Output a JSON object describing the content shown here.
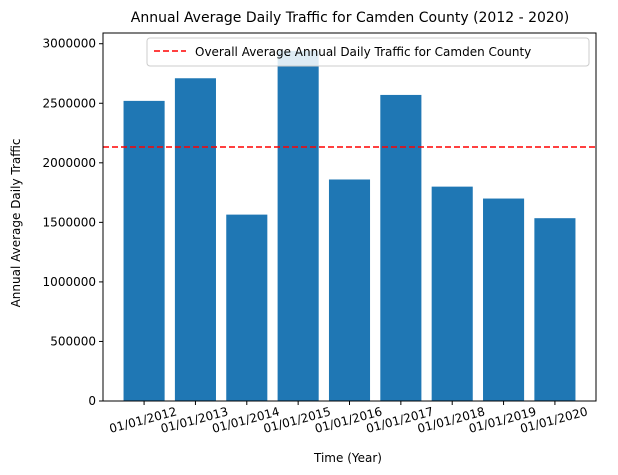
{
  "chart_data": {
    "type": "bar",
    "title": "Annual Average Daily Traffic for Camden County (2012 - 2020)",
    "xlabel": "Time (Year)",
    "ylabel": "Annual Average Daily Traffic",
    "categories": [
      "01/01/2012",
      "01/01/2013",
      "01/01/2014",
      "01/01/2015",
      "01/01/2016",
      "01/01/2017",
      "01/01/2018",
      "01/01/2019",
      "01/01/2020"
    ],
    "values": [
      2520000,
      2710000,
      1565000,
      2940000,
      1860000,
      2570000,
      1800000,
      1700000,
      1535000
    ],
    "ylim": [
      0,
      3090000
    ],
    "yticks": [
      0,
      500000,
      1000000,
      1500000,
      2000000,
      2500000,
      3000000
    ],
    "ytick_labels": [
      "0",
      "500000",
      "1000000",
      "1500000",
      "2000000",
      "2500000",
      "3000000"
    ],
    "reference_line": {
      "value": 2133000,
      "label": "Overall Average Annual Daily Traffic for Camden County",
      "style": "dashed",
      "color": "#ff0000"
    },
    "bar_color": "#1f77b4",
    "legend_position": "top-right",
    "grid": false,
    "xtick_rotation": -15
  }
}
